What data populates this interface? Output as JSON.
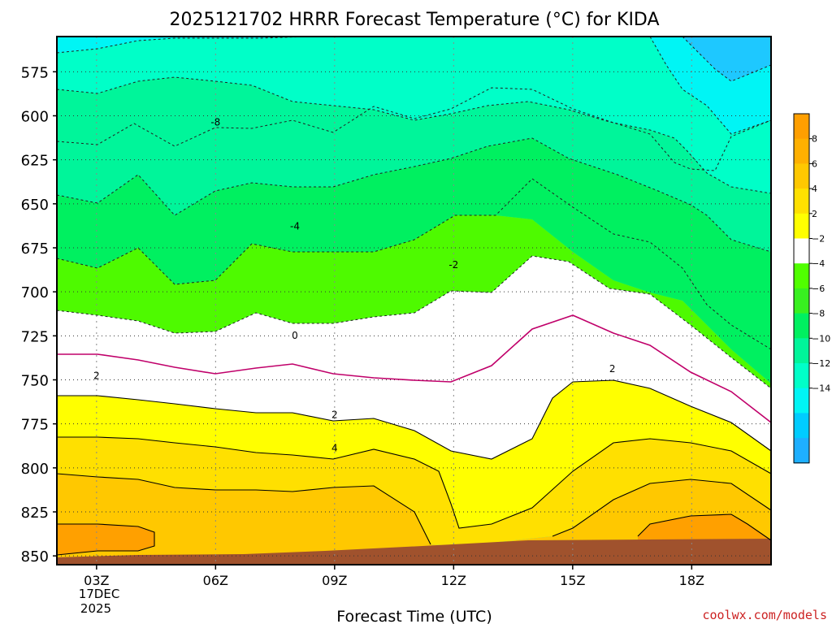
{
  "chart_data": {
    "type": "heatmap",
    "title": "2025121702 HRRR Forecast Temperature (°C) for KIDA",
    "xlabel": "Forecast Time (UTC)",
    "ylabel": "",
    "credit": "coolwx.com/models",
    "x_ticks": [
      "03Z",
      "06Z",
      "09Z",
      "12Z",
      "15Z",
      "18Z"
    ],
    "x_date_line1": "17DEC",
    "x_date_line2": "2025",
    "x_range_hours": [
      2,
      20
    ],
    "y_ticks": [
      575,
      600,
      625,
      650,
      675,
      700,
      725,
      750,
      775,
      800,
      825,
      850
    ],
    "y_range": [
      555,
      855
    ],
    "colorbar_ticks": [
      "8",
      "6",
      "4",
      "2",
      "−2",
      "−4",
      "−6",
      "−8",
      "−10",
      "−12",
      "−14"
    ],
    "colorbar_colors": [
      "#FF9F00",
      "#FFB000",
      "#FFC800",
      "#FFE000",
      "#FFFF00",
      "#FFFFFF",
      "#50FF00",
      "#38F020",
      "#00F060",
      "#00F59A",
      "#00FFC8",
      "#00F5F5",
      "#00CCFF",
      "#1EAFFF"
    ],
    "contour_labels": [
      {
        "text": "-8",
        "x": 6.0,
        "p": 604
      },
      {
        "text": "-4",
        "x": 8.0,
        "p": 663
      },
      {
        "text": "-2",
        "x": 12.0,
        "p": 685
      },
      {
        "text": "0",
        "x": 8.0,
        "p": 725
      },
      {
        "text": "2",
        "x": 3.0,
        "p": 748
      },
      {
        "text": "2",
        "x": 9.0,
        "p": 770
      },
      {
        "text": "4",
        "x": 9.0,
        "p": 789
      },
      {
        "text": "2",
        "x": 16.0,
        "p": 744
      }
    ]
  }
}
